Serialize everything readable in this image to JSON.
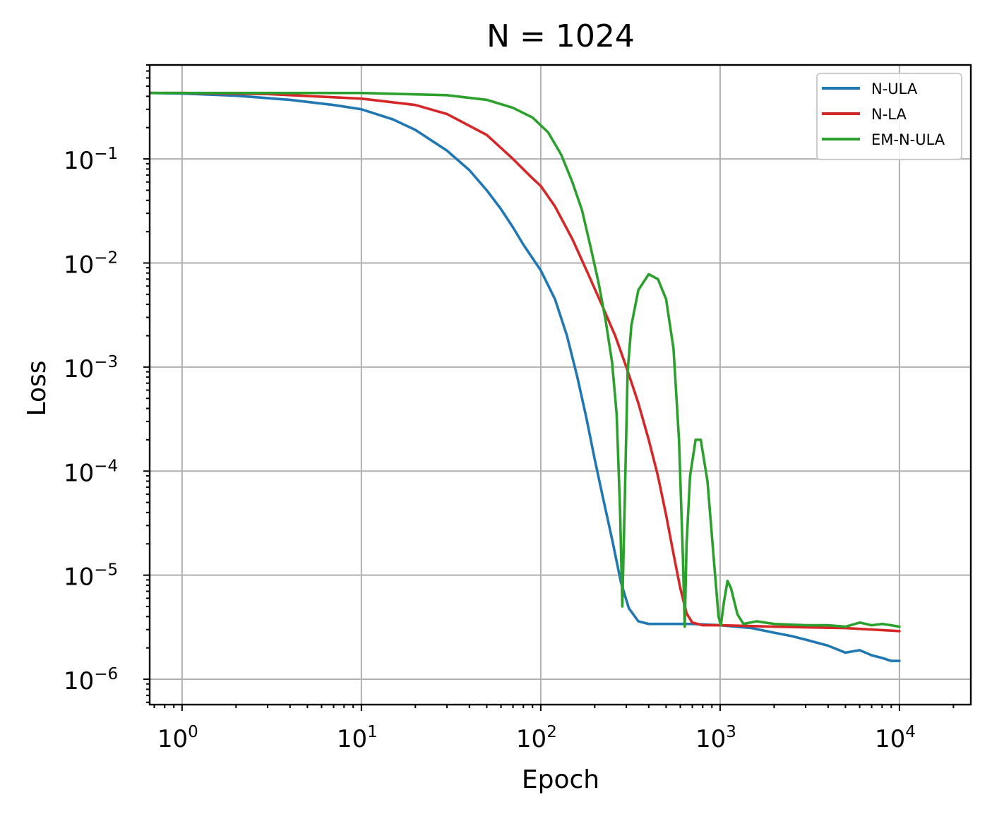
{
  "chart_data": {
    "type": "line",
    "title": "N = 1024",
    "xlabel": "Epoch",
    "ylabel": "Loss",
    "xscale": "log",
    "yscale": "log",
    "xlim": [
      0.66,
      25000
    ],
    "ylim": [
      5.7e-07,
      0.8
    ],
    "grid": true,
    "legend_position": "top-right",
    "x_ticks": [
      {
        "value": 1,
        "base": "10",
        "exp": "0"
      },
      {
        "value": 10,
        "base": "10",
        "exp": "1"
      },
      {
        "value": 100,
        "base": "10",
        "exp": "2"
      },
      {
        "value": 1000,
        "base": "10",
        "exp": "3"
      },
      {
        "value": 10000,
        "base": "10",
        "exp": "4"
      }
    ],
    "y_ticks": [
      {
        "value": 0.1,
        "base": "10",
        "exp": "−1"
      },
      {
        "value": 0.01,
        "base": "10",
        "exp": "−2"
      },
      {
        "value": 0.001,
        "base": "10",
        "exp": "−3"
      },
      {
        "value": 0.0001,
        "base": "10",
        "exp": "−4"
      },
      {
        "value": 1e-05,
        "base": "10",
        "exp": "−5"
      },
      {
        "value": 1e-06,
        "base": "10",
        "exp": "−6"
      }
    ],
    "series": [
      {
        "name": "N-ULA",
        "color": "#1f77b4",
        "points": [
          [
            0.66,
            0.43
          ],
          [
            1,
            0.425
          ],
          [
            2,
            0.405
          ],
          [
            4,
            0.37
          ],
          [
            7,
            0.33
          ],
          [
            10,
            0.3
          ],
          [
            15,
            0.24
          ],
          [
            20,
            0.19
          ],
          [
            30,
            0.12
          ],
          [
            40,
            0.078
          ],
          [
            50,
            0.05
          ],
          [
            60,
            0.033
          ],
          [
            70,
            0.022
          ],
          [
            80,
            0.015
          ],
          [
            100,
            0.0085
          ],
          [
            120,
            0.0045
          ],
          [
            140,
            0.002
          ],
          [
            160,
            0.0008
          ],
          [
            180,
            0.00032
          ],
          [
            200,
            0.00013
          ],
          [
            220,
            6e-05
          ],
          [
            250,
            2.2e-05
          ],
          [
            280,
            8.5e-06
          ],
          [
            310,
            4.8e-06
          ],
          [
            350,
            3.6e-06
          ],
          [
            400,
            3.4e-06
          ],
          [
            500,
            3.4e-06
          ],
          [
            700,
            3.4e-06
          ],
          [
            1000,
            3.3e-06
          ],
          [
            1500,
            3.1e-06
          ],
          [
            2000,
            2.8e-06
          ],
          [
            2500,
            2.6e-06
          ],
          [
            3000,
            2.4e-06
          ],
          [
            4000,
            2.1e-06
          ],
          [
            5000,
            1.8e-06
          ],
          [
            6000,
            1.9e-06
          ],
          [
            7000,
            1.7e-06
          ],
          [
            8000,
            1.6e-06
          ],
          [
            9000,
            1.5e-06
          ],
          [
            10000,
            1.5e-06
          ]
        ]
      },
      {
        "name": "N-LA",
        "color": "#d62728",
        "points": [
          [
            0.66,
            0.43
          ],
          [
            1,
            0.43
          ],
          [
            3,
            0.42
          ],
          [
            10,
            0.38
          ],
          [
            20,
            0.33
          ],
          [
            30,
            0.27
          ],
          [
            50,
            0.17
          ],
          [
            70,
            0.1
          ],
          [
            90,
            0.065
          ],
          [
            100,
            0.055
          ],
          [
            120,
            0.035
          ],
          [
            150,
            0.017
          ],
          [
            180,
            0.0085
          ],
          [
            220,
            0.0039
          ],
          [
            260,
            0.002
          ],
          [
            300,
            0.001
          ],
          [
            350,
            0.00045
          ],
          [
            400,
            0.0002
          ],
          [
            450,
            9e-05
          ],
          [
            500,
            3.8e-05
          ],
          [
            550,
            1.6e-05
          ],
          [
            600,
            7.5e-06
          ],
          [
            650,
            4.3e-06
          ],
          [
            700,
            3.5e-06
          ],
          [
            800,
            3.3e-06
          ],
          [
            1000,
            3.3e-06
          ],
          [
            2000,
            3.2e-06
          ],
          [
            5000,
            3.1e-06
          ],
          [
            10000,
            2.9e-06
          ]
        ]
      },
      {
        "name": "EM-N-ULA",
        "color": "#2ca02c",
        "points": [
          [
            0.66,
            0.43
          ],
          [
            1,
            0.43
          ],
          [
            10,
            0.43
          ],
          [
            30,
            0.41
          ],
          [
            50,
            0.37
          ],
          [
            70,
            0.31
          ],
          [
            90,
            0.25
          ],
          [
            110,
            0.18
          ],
          [
            130,
            0.11
          ],
          [
            150,
            0.06
          ],
          [
            170,
            0.032
          ],
          [
            190,
            0.014
          ],
          [
            210,
            0.0065
          ],
          [
            230,
            0.0028
          ],
          [
            250,
            0.0011
          ],
          [
            265,
            0.00035
          ],
          [
            277,
            4e-05
          ],
          [
            285,
            5e-06
          ],
          [
            293,
            4e-05
          ],
          [
            305,
            0.0009
          ],
          [
            320,
            0.0025
          ],
          [
            350,
            0.0055
          ],
          [
            400,
            0.0078
          ],
          [
            450,
            0.007
          ],
          [
            500,
            0.0045
          ],
          [
            550,
            0.0015
          ],
          [
            590,
            0.0002
          ],
          [
            620,
            1.5e-05
          ],
          [
            635,
            3.2e-06
          ],
          [
            650,
            2e-05
          ],
          [
            680,
            9e-05
          ],
          [
            730,
            0.0002
          ],
          [
            780,
            0.0002
          ],
          [
            850,
            8e-05
          ],
          [
            920,
            1.5e-05
          ],
          [
            980,
            4e-06
          ],
          [
            1010,
            3.3e-06
          ],
          [
            1050,
            5.5e-06
          ],
          [
            1100,
            8.8e-06
          ],
          [
            1150,
            7.5e-06
          ],
          [
            1250,
            4.2e-06
          ],
          [
            1350,
            3.4e-06
          ],
          [
            1600,
            3.6e-06
          ],
          [
            2000,
            3.4e-06
          ],
          [
            3000,
            3.3e-06
          ],
          [
            4000,
            3.3e-06
          ],
          [
            5000,
            3.2e-06
          ],
          [
            6000,
            3.5e-06
          ],
          [
            7000,
            3.3e-06
          ],
          [
            8000,
            3.4e-06
          ],
          [
            9000,
            3.3e-06
          ],
          [
            10000,
            3.2e-06
          ]
        ]
      }
    ]
  }
}
